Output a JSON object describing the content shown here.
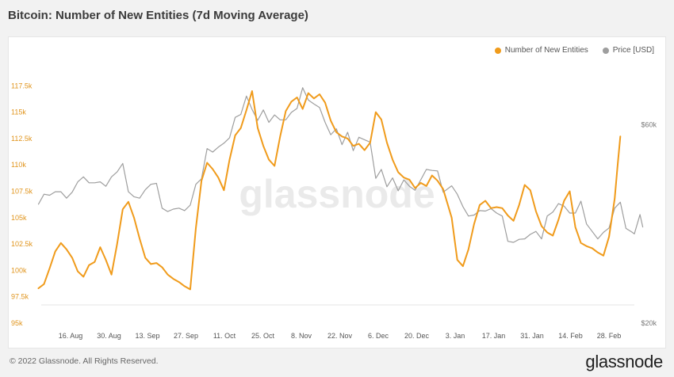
{
  "chart_data": {
    "type": "line",
    "title": "Bitcoin: Number of New Entities (7d Moving Average)",
    "xlabel": "",
    "ylabel": "",
    "x_labels": [
      "16. Aug",
      "30. Aug",
      "13. Sep",
      "27. Sep",
      "11. Oct",
      "25. Oct",
      "8. Nov",
      "22. Nov",
      "6. Dec",
      "20. Dec",
      "3. Jan",
      "17. Jan",
      "31. Jan",
      "14. Feb",
      "28. Feb"
    ],
    "x_range": [
      "2021-08-08",
      "2022-03-07"
    ],
    "ylim_left": [
      95000,
      118500
    ],
    "left_ticks": [
      {
        "value": 95000,
        "label": "95k"
      },
      {
        "value": 97500,
        "label": "97.5k"
      },
      {
        "value": 100000,
        "label": "100k"
      },
      {
        "value": 102500,
        "label": "102.5k"
      },
      {
        "value": 105000,
        "label": "105k"
      },
      {
        "value": 107500,
        "label": "107.5k"
      },
      {
        "value": 110000,
        "label": "110k"
      },
      {
        "value": 112500,
        "label": "112.5k"
      },
      {
        "value": 115000,
        "label": "115k"
      },
      {
        "value": 117500,
        "label": "117.5k"
      }
    ],
    "ylim_right": [
      20000,
      70000
    ],
    "right_ticks": [
      {
        "value": 20000,
        "label": "$20k"
      },
      {
        "value": 60000,
        "label": "$60k"
      }
    ],
    "grid": false,
    "legend_position": "top-right",
    "series": [
      {
        "name": "Number of New Entities",
        "axis": "left",
        "color": "#f09b1b",
        "points": [
          [
            "2021-08-07",
            98300
          ],
          [
            "2021-08-09",
            98700
          ],
          [
            "2021-08-11",
            100200
          ],
          [
            "2021-08-13",
            101800
          ],
          [
            "2021-08-15",
            102600
          ],
          [
            "2021-08-17",
            102000
          ],
          [
            "2021-08-19",
            101200
          ],
          [
            "2021-08-21",
            99900
          ],
          [
            "2021-08-23",
            99400
          ],
          [
            "2021-08-25",
            100500
          ],
          [
            "2021-08-27",
            100800
          ],
          [
            "2021-08-29",
            102200
          ],
          [
            "2021-08-31",
            101000
          ],
          [
            "2021-09-02",
            99600
          ],
          [
            "2021-09-04",
            102500
          ],
          [
            "2021-09-06",
            105800
          ],
          [
            "2021-09-08",
            106500
          ],
          [
            "2021-09-10",
            105000
          ],
          [
            "2021-09-12",
            103000
          ],
          [
            "2021-09-14",
            101200
          ],
          [
            "2021-09-16",
            100600
          ],
          [
            "2021-09-18",
            100700
          ],
          [
            "2021-09-20",
            100300
          ],
          [
            "2021-09-22",
            99600
          ],
          [
            "2021-09-24",
            99200
          ],
          [
            "2021-09-26",
            98900
          ],
          [
            "2021-09-28",
            98500
          ],
          [
            "2021-09-30",
            98200
          ],
          [
            "2021-10-02",
            104000
          ],
          [
            "2021-10-04",
            108500
          ],
          [
            "2021-10-06",
            110200
          ],
          [
            "2021-10-08",
            109600
          ],
          [
            "2021-10-10",
            108800
          ],
          [
            "2021-10-12",
            107600
          ],
          [
            "2021-10-14",
            110500
          ],
          [
            "2021-10-16",
            112800
          ],
          [
            "2021-10-18",
            113500
          ],
          [
            "2021-10-20",
            115200
          ],
          [
            "2021-10-22",
            117000
          ],
          [
            "2021-10-24",
            113500
          ],
          [
            "2021-10-26",
            111800
          ],
          [
            "2021-10-28",
            110500
          ],
          [
            "2021-10-30",
            109900
          ],
          [
            "2021-11-01",
            112700
          ],
          [
            "2021-11-03",
            115100
          ],
          [
            "2021-11-05",
            116000
          ],
          [
            "2021-11-07",
            116400
          ],
          [
            "2021-11-09",
            115300
          ],
          [
            "2021-11-11",
            116800
          ],
          [
            "2021-11-13",
            116300
          ],
          [
            "2021-11-15",
            116700
          ],
          [
            "2021-11-17",
            115900
          ],
          [
            "2021-11-19",
            114200
          ],
          [
            "2021-11-21",
            113100
          ],
          [
            "2021-11-23",
            112700
          ],
          [
            "2021-11-25",
            112500
          ],
          [
            "2021-11-27",
            111800
          ],
          [
            "2021-11-29",
            112000
          ],
          [
            "2021-12-01",
            111400
          ],
          [
            "2021-12-03",
            112100
          ],
          [
            "2021-12-05",
            115000
          ],
          [
            "2021-12-07",
            114300
          ],
          [
            "2021-12-09",
            112100
          ],
          [
            "2021-12-11",
            110500
          ],
          [
            "2021-12-13",
            109300
          ],
          [
            "2021-12-15",
            108800
          ],
          [
            "2021-12-17",
            108600
          ],
          [
            "2021-12-19",
            107800
          ],
          [
            "2021-12-21",
            108300
          ],
          [
            "2021-12-23",
            108000
          ],
          [
            "2021-12-25",
            109000
          ],
          [
            "2021-12-27",
            108500
          ],
          [
            "2021-12-29",
            107700
          ],
          [
            "2022-01-01",
            105000
          ],
          [
            "2022-01-03",
            101000
          ],
          [
            "2022-01-05",
            100400
          ],
          [
            "2022-01-07",
            102000
          ],
          [
            "2022-01-09",
            104400
          ],
          [
            "2022-01-11",
            106200
          ],
          [
            "2022-01-13",
            106600
          ],
          [
            "2022-01-15",
            105900
          ],
          [
            "2022-01-17",
            106000
          ],
          [
            "2022-01-19",
            105900
          ],
          [
            "2022-01-21",
            105200
          ],
          [
            "2022-01-23",
            104700
          ],
          [
            "2022-01-25",
            106200
          ],
          [
            "2022-01-27",
            108100
          ],
          [
            "2022-01-29",
            107600
          ],
          [
            "2022-01-31",
            105600
          ],
          [
            "2022-02-02",
            104200
          ],
          [
            "2022-02-04",
            103600
          ],
          [
            "2022-02-06",
            103300
          ],
          [
            "2022-02-08",
            104800
          ],
          [
            "2022-02-10",
            106600
          ],
          [
            "2022-02-12",
            107500
          ],
          [
            "2022-02-14",
            104100
          ],
          [
            "2022-02-16",
            102600
          ],
          [
            "2022-02-18",
            102300
          ],
          [
            "2022-02-20",
            102100
          ],
          [
            "2022-02-22",
            101700
          ],
          [
            "2022-02-24",
            101400
          ],
          [
            "2022-02-26",
            103200
          ],
          [
            "2022-02-28",
            106800
          ],
          [
            "2022-03-01",
            109800
          ],
          [
            "2022-03-02",
            112700
          ]
        ]
      },
      {
        "name": "Price [USD]",
        "axis": "right",
        "color": "#9e9e9e",
        "points": [
          [
            "2021-08-07",
            44000
          ],
          [
            "2021-08-09",
            46000
          ],
          [
            "2021-08-11",
            45800
          ],
          [
            "2021-08-13",
            46500
          ],
          [
            "2021-08-15",
            46500
          ],
          [
            "2021-08-17",
            45200
          ],
          [
            "2021-08-19",
            46400
          ],
          [
            "2021-08-21",
            48500
          ],
          [
            "2021-08-23",
            49500
          ],
          [
            "2021-08-25",
            48300
          ],
          [
            "2021-08-27",
            48300
          ],
          [
            "2021-08-29",
            48500
          ],
          [
            "2021-08-31",
            47600
          ],
          [
            "2021-09-02",
            49500
          ],
          [
            "2021-09-04",
            50500
          ],
          [
            "2021-09-06",
            52200
          ],
          [
            "2021-09-08",
            46500
          ],
          [
            "2021-09-10",
            45500
          ],
          [
            "2021-09-12",
            45200
          ],
          [
            "2021-09-14",
            46900
          ],
          [
            "2021-09-16",
            48000
          ],
          [
            "2021-09-18",
            48200
          ],
          [
            "2021-09-20",
            43200
          ],
          [
            "2021-09-22",
            42500
          ],
          [
            "2021-09-24",
            43000
          ],
          [
            "2021-09-26",
            43200
          ],
          [
            "2021-09-28",
            42700
          ],
          [
            "2021-09-30",
            43800
          ],
          [
            "2021-10-02",
            48000
          ],
          [
            "2021-10-04",
            49100
          ],
          [
            "2021-10-06",
            55200
          ],
          [
            "2021-10-08",
            54500
          ],
          [
            "2021-10-10",
            55500
          ],
          [
            "2021-10-12",
            56300
          ],
          [
            "2021-10-14",
            57400
          ],
          [
            "2021-10-16",
            61500
          ],
          [
            "2021-10-18",
            62100
          ],
          [
            "2021-10-20",
            65800
          ],
          [
            "2021-10-22",
            63100
          ],
          [
            "2021-10-24",
            60900
          ],
          [
            "2021-10-26",
            63000
          ],
          [
            "2021-10-28",
            60500
          ],
          [
            "2021-10-30",
            62000
          ],
          [
            "2021-11-01",
            61000
          ],
          [
            "2021-11-03",
            61000
          ],
          [
            "2021-11-05",
            62500
          ],
          [
            "2021-11-07",
            63300
          ],
          [
            "2021-11-09",
            67500
          ],
          [
            "2021-11-11",
            65000
          ],
          [
            "2021-11-13",
            64200
          ],
          [
            "2021-11-15",
            63500
          ],
          [
            "2021-11-17",
            60500
          ],
          [
            "2021-11-19",
            58000
          ],
          [
            "2021-11-21",
            59200
          ],
          [
            "2021-11-23",
            56000
          ],
          [
            "2021-11-25",
            58500
          ],
          [
            "2021-11-27",
            54800
          ],
          [
            "2021-11-29",
            57500
          ],
          [
            "2021-12-01",
            57000
          ],
          [
            "2021-12-03",
            56500
          ],
          [
            "2021-12-05",
            49200
          ],
          [
            "2021-12-07",
            51000
          ],
          [
            "2021-12-09",
            47500
          ],
          [
            "2021-12-11",
            49300
          ],
          [
            "2021-12-13",
            46700
          ],
          [
            "2021-12-15",
            48900
          ],
          [
            "2021-12-17",
            47600
          ],
          [
            "2021-12-19",
            46800
          ],
          [
            "2021-12-21",
            48900
          ],
          [
            "2021-12-23",
            51000
          ],
          [
            "2021-12-25",
            50800
          ],
          [
            "2021-12-27",
            50700
          ],
          [
            "2021-12-29",
            46400
          ],
          [
            "2022-01-01",
            47700
          ],
          [
            "2022-01-03",
            46000
          ],
          [
            "2022-01-05",
            43500
          ],
          [
            "2022-01-07",
            41600
          ],
          [
            "2022-01-09",
            41800
          ],
          [
            "2022-01-11",
            42700
          ],
          [
            "2022-01-13",
            42600
          ],
          [
            "2022-01-15",
            43100
          ],
          [
            "2022-01-17",
            42200
          ],
          [
            "2022-01-19",
            41600
          ],
          [
            "2022-01-21",
            36500
          ],
          [
            "2022-01-23",
            36300
          ],
          [
            "2022-01-25",
            36900
          ],
          [
            "2022-01-27",
            37000
          ],
          [
            "2022-01-29",
            37900
          ],
          [
            "2022-01-31",
            38500
          ],
          [
            "2022-02-02",
            37000
          ],
          [
            "2022-02-04",
            41600
          ],
          [
            "2022-02-06",
            42400
          ],
          [
            "2022-02-08",
            44100
          ],
          [
            "2022-02-10",
            43600
          ],
          [
            "2022-02-12",
            42200
          ],
          [
            "2022-02-14",
            42200
          ],
          [
            "2022-02-16",
            44600
          ],
          [
            "2022-02-18",
            40000
          ],
          [
            "2022-02-20",
            38500
          ],
          [
            "2022-02-22",
            37000
          ],
          [
            "2022-02-24",
            38300
          ],
          [
            "2022-02-26",
            39200
          ],
          [
            "2022-02-28",
            43200
          ],
          [
            "2022-03-02",
            44400
          ],
          [
            "2022-03-04",
            39100
          ],
          [
            "2022-03-06",
            38400
          ],
          [
            "2022-03-07",
            38000
          ],
          [
            "2022-03-09",
            41900
          ],
          [
            "2022-03-10",
            39400
          ]
        ]
      }
    ]
  },
  "watermark": "glassnode",
  "footer": {
    "copyright": "© 2022 Glassnode. All Rights Reserved.",
    "logo_text": "glassnode"
  }
}
